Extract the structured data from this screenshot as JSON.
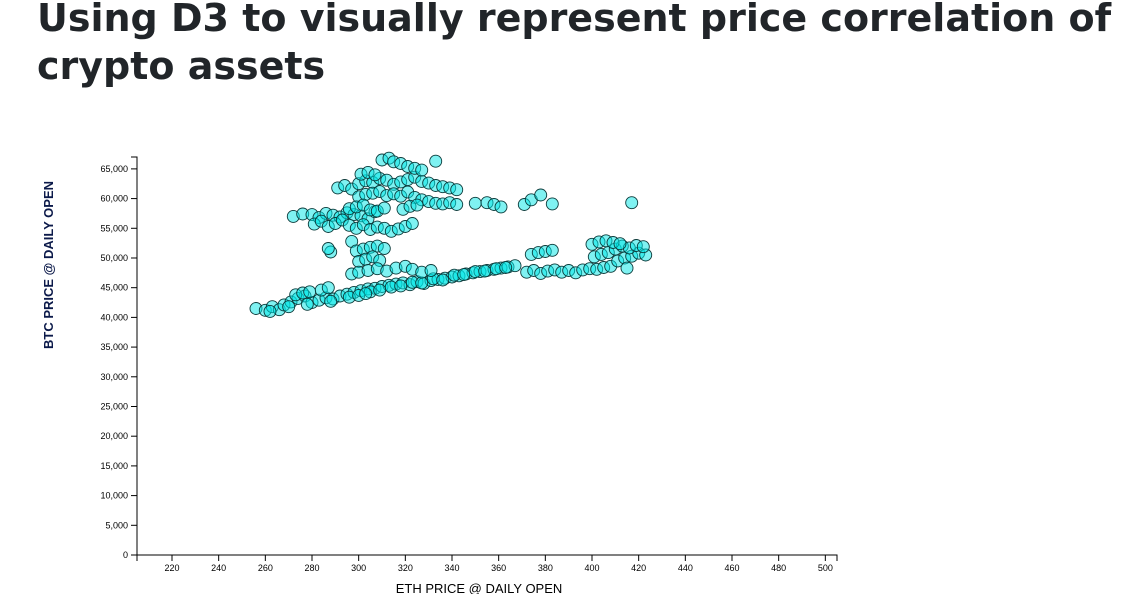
{
  "page": {
    "title": "Using D3 to visually represent price correlation of crypto assets"
  },
  "chart_data": {
    "type": "scatter",
    "title": "",
    "xlabel": "ETH PRICE @ DAILY OPEN",
    "ylabel": "BTC PRICE @ DAILY OPEN",
    "xlim": [
      205,
      505
    ],
    "ylim": [
      0,
      67000
    ],
    "x_ticks": [
      220,
      240,
      260,
      280,
      300,
      320,
      340,
      360,
      380,
      400,
      420,
      440,
      460,
      480,
      500
    ],
    "x_tick_labels": [
      "220",
      "240",
      "260",
      "280",
      "300",
      "320",
      "340",
      "360",
      "380",
      "400",
      "420",
      "440",
      "460",
      "480",
      "500"
    ],
    "y_ticks": [
      0,
      5000,
      10000,
      15000,
      20000,
      25000,
      30000,
      35000,
      40000,
      45000,
      50000,
      55000,
      60000,
      65000
    ],
    "y_tick_labels": [
      "0",
      "5,000",
      "10,000",
      "15,000",
      "20,000",
      "25,000",
      "30,000",
      "35,000",
      "40,000",
      "45,000",
      "50,000",
      "55,000",
      "60,000",
      "65,000"
    ],
    "grid": false,
    "legend": "none",
    "marker_fill": "#00e5e5",
    "marker_stroke": "#0b3a3a",
    "points": [
      [
        256,
        41500
      ],
      [
        260,
        41200
      ],
      [
        263,
        41800
      ],
      [
        266,
        41300
      ],
      [
        268,
        42100
      ],
      [
        271,
        42600
      ],
      [
        274,
        43200
      ],
      [
        277,
        43600
      ],
      [
        280,
        42500
      ],
      [
        283,
        42900
      ],
      [
        286,
        43300
      ],
      [
        289,
        43100
      ],
      [
        292,
        43600
      ],
      [
        295,
        43900
      ],
      [
        298,
        44200
      ],
      [
        301,
        44500
      ],
      [
        304,
        44800
      ],
      [
        307,
        44900
      ],
      [
        310,
        45200
      ],
      [
        313,
        45400
      ],
      [
        316,
        45600
      ],
      [
        319,
        45800
      ],
      [
        322,
        45500
      ],
      [
        325,
        46000
      ],
      [
        328,
        45700
      ],
      [
        331,
        46200
      ],
      [
        334,
        46400
      ],
      [
        337,
        46600
      ],
      [
        340,
        46800
      ],
      [
        343,
        47000
      ],
      [
        346,
        47300
      ],
      [
        349,
        47500
      ],
      [
        352,
        47700
      ],
      [
        355,
        47900
      ],
      [
        358,
        48100
      ],
      [
        361,
        48300
      ],
      [
        364,
        48500
      ],
      [
        367,
        48700
      ],
      [
        262,
        41000
      ],
      [
        270,
        41800
      ],
      [
        278,
        42200
      ],
      [
        288,
        42700
      ],
      [
        296,
        43400
      ],
      [
        305,
        44300
      ],
      [
        314,
        45100
      ],
      [
        323,
        45900
      ],
      [
        332,
        46500
      ],
      [
        341,
        47100
      ],
      [
        350,
        47700
      ],
      [
        359,
        48200
      ],
      [
        273,
        43800
      ],
      [
        276,
        44100
      ],
      [
        279,
        44300
      ],
      [
        284,
        44600
      ],
      [
        287,
        45000
      ],
      [
        300,
        43700
      ],
      [
        303,
        44000
      ],
      [
        309,
        44600
      ],
      [
        318,
        45300
      ],
      [
        327,
        45800
      ],
      [
        336,
        46300
      ],
      [
        345,
        47200
      ],
      [
        354,
        47800
      ],
      [
        363,
        48400
      ],
      [
        372,
        47600
      ],
      [
        375,
        47900
      ],
      [
        378,
        47400
      ],
      [
        381,
        47800
      ],
      [
        384,
        48000
      ],
      [
        387,
        47600
      ],
      [
        390,
        47900
      ],
      [
        393,
        47500
      ],
      [
        396,
        48000
      ],
      [
        399,
        48200
      ],
      [
        402,
        48100
      ],
      [
        405,
        48400
      ],
      [
        408,
        48600
      ],
      [
        411,
        49500
      ],
      [
        414,
        50000
      ],
      [
        417,
        50300
      ],
      [
        420,
        50800
      ],
      [
        423,
        50500
      ],
      [
        401,
        50200
      ],
      [
        404,
        50600
      ],
      [
        407,
        50900
      ],
      [
        410,
        51500
      ],
      [
        413,
        52000
      ],
      [
        416,
        51700
      ],
      [
        419,
        52100
      ],
      [
        422,
        51900
      ],
      [
        400,
        52300
      ],
      [
        403,
        52700
      ],
      [
        406,
        52900
      ],
      [
        409,
        52600
      ],
      [
        412,
        52400
      ],
      [
        374,
        50600
      ],
      [
        377,
        50900
      ],
      [
        380,
        51100
      ],
      [
        383,
        51300
      ],
      [
        415,
        48300
      ],
      [
        272,
        57000
      ],
      [
        276,
        57400
      ],
      [
        280,
        57300
      ],
      [
        283,
        56800
      ],
      [
        286,
        57500
      ],
      [
        289,
        57200
      ],
      [
        292,
        56900
      ],
      [
        295,
        57600
      ],
      [
        298,
        57300
      ],
      [
        301,
        57100
      ],
      [
        304,
        56600
      ],
      [
        307,
        57800
      ],
      [
        281,
        55700
      ],
      [
        284,
        56200
      ],
      [
        287,
        55300
      ],
      [
        290,
        55800
      ],
      [
        293,
        56400
      ],
      [
        296,
        55500
      ],
      [
        299,
        55000
      ],
      [
        302,
        55600
      ],
      [
        305,
        54800
      ],
      [
        308,
        55200
      ],
      [
        311,
        55000
      ],
      [
        314,
        54500
      ],
      [
        317,
        54900
      ],
      [
        320,
        55300
      ],
      [
        323,
        55800
      ],
      [
        288,
        51000
      ],
      [
        287,
        51600
      ],
      [
        297,
        52800
      ],
      [
        299,
        51200
      ],
      [
        302,
        51500
      ],
      [
        305,
        51800
      ],
      [
        308,
        52000
      ],
      [
        311,
        51600
      ],
      [
        300,
        49400
      ],
      [
        303,
        49800
      ],
      [
        306,
        50200
      ],
      [
        309,
        49600
      ],
      [
        297,
        47300
      ],
      [
        300,
        47600
      ],
      [
        304,
        47900
      ],
      [
        308,
        48200
      ],
      [
        312,
        47800
      ],
      [
        316,
        48300
      ],
      [
        320,
        48600
      ],
      [
        323,
        48100
      ],
      [
        327,
        47600
      ],
      [
        331,
        47900
      ],
      [
        291,
        61800
      ],
      [
        294,
        62200
      ],
      [
        297,
        61600
      ],
      [
        300,
        62500
      ],
      [
        303,
        63000
      ],
      [
        306,
        62700
      ],
      [
        309,
        63400
      ],
      [
        312,
        63100
      ],
      [
        315,
        62400
      ],
      [
        318,
        62800
      ],
      [
        321,
        63200
      ],
      [
        324,
        63600
      ],
      [
        327,
        62900
      ],
      [
        330,
        62600
      ],
      [
        333,
        62200
      ],
      [
        336,
        62000
      ],
      [
        339,
        61800
      ],
      [
        342,
        61500
      ],
      [
        300,
        60300
      ],
      [
        303,
        60700
      ],
      [
        306,
        60900
      ],
      [
        309,
        61200
      ],
      [
        312,
        60500
      ],
      [
        315,
        60800
      ],
      [
        318,
        60400
      ],
      [
        321,
        61100
      ],
      [
        324,
        60200
      ],
      [
        327,
        59800
      ],
      [
        330,
        59500
      ],
      [
        333,
        59200
      ],
      [
        336,
        59100
      ],
      [
        339,
        59300
      ],
      [
        342,
        59000
      ],
      [
        301,
        64100
      ],
      [
        304,
        64400
      ],
      [
        307,
        64000
      ],
      [
        310,
        66500
      ],
      [
        313,
        66800
      ],
      [
        315,
        66200
      ],
      [
        318,
        65900
      ],
      [
        321,
        65400
      ],
      [
        324,
        65100
      ],
      [
        327,
        64800
      ],
      [
        333,
        66300
      ],
      [
        296,
        58300
      ],
      [
        299,
        58600
      ],
      [
        302,
        58900
      ],
      [
        305,
        58100
      ],
      [
        308,
        57900
      ],
      [
        311,
        58400
      ],
      [
        319,
        58200
      ],
      [
        322,
        58700
      ],
      [
        325,
        58900
      ],
      [
        350,
        59200
      ],
      [
        355,
        59300
      ],
      [
        358,
        59000
      ],
      [
        361,
        58600
      ],
      [
        371,
        59000
      ],
      [
        374,
        59800
      ],
      [
        378,
        60600
      ],
      [
        383,
        59100
      ],
      [
        417,
        59300
      ]
    ]
  }
}
